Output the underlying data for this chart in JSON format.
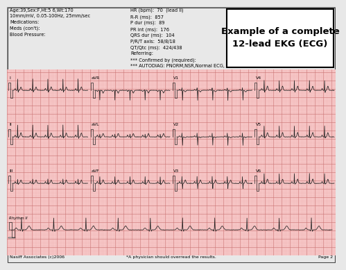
{
  "title_box_text": "Example of a complete\n12-lead EKG (ECG)",
  "header_left": "Age:39,Sex:F,Ht:5 6,Wt:170\n10mm/mV, 0.05-100Hz, 25mm/sec\nMedications:\nMeds (con't):\nBlood Pressure:",
  "header_right": "HR (bpm):  70  (lead II)\nR-R (ms):  857\nP dur (ms):  89\nPR int (ms):  176\nQRS dur (ms):  104\nP/R/T axis:  58/8/18\nQT/Qtc (ms):  424/438\nReferring:\n*** Confirmed by (required):\n*** AUTODIAG: PNORM,NSR,Normal ECG, bv",
  "footer_left": "Nasiff Associates (c)2006",
  "footer_center": "*A physician should overread the results.",
  "footer_right": "Page 2",
  "ecg_bg": "#f7c8c8",
  "grid_minor_color": "#eeaaaa",
  "grid_major_color": "#cc7777",
  "ecg_line_color": "#222222",
  "bg_color": "#e8e8e8",
  "header_bg": "#e8e8e8",
  "title_box_bg": "#ffffff"
}
